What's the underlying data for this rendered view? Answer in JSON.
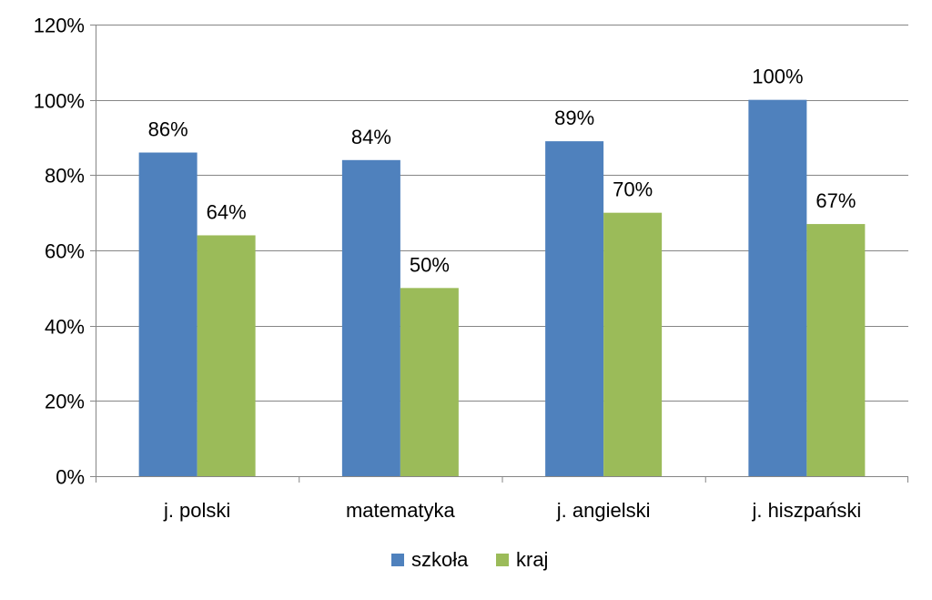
{
  "chart_data": {
    "type": "bar",
    "categories": [
      "j. polski",
      "matematyka",
      "j. angielski",
      "j. hiszpański"
    ],
    "series": [
      {
        "name": "szkoła",
        "values": [
          86,
          84,
          89,
          100
        ],
        "labels": [
          "86%",
          "84%",
          "89%",
          "100%"
        ],
        "color": "#4F81BD"
      },
      {
        "name": "kraj",
        "values": [
          64,
          50,
          70,
          67
        ],
        "labels": [
          "64%",
          "50%",
          "70%",
          "67%"
        ],
        "color": "#9BBB59"
      }
    ],
    "y_ticks": [
      {
        "value": 0,
        "label": "0%"
      },
      {
        "value": 20,
        "label": "20%"
      },
      {
        "value": 40,
        "label": "40%"
      },
      {
        "value": 60,
        "label": "60%"
      },
      {
        "value": 80,
        "label": "80%"
      },
      {
        "value": 100,
        "label": "100%"
      },
      {
        "value": 120,
        "label": "120%"
      }
    ],
    "ylim": [
      0,
      120
    ],
    "grid": true,
    "legend_position": "bottom",
    "title": "",
    "xlabel": "",
    "ylabel": ""
  }
}
